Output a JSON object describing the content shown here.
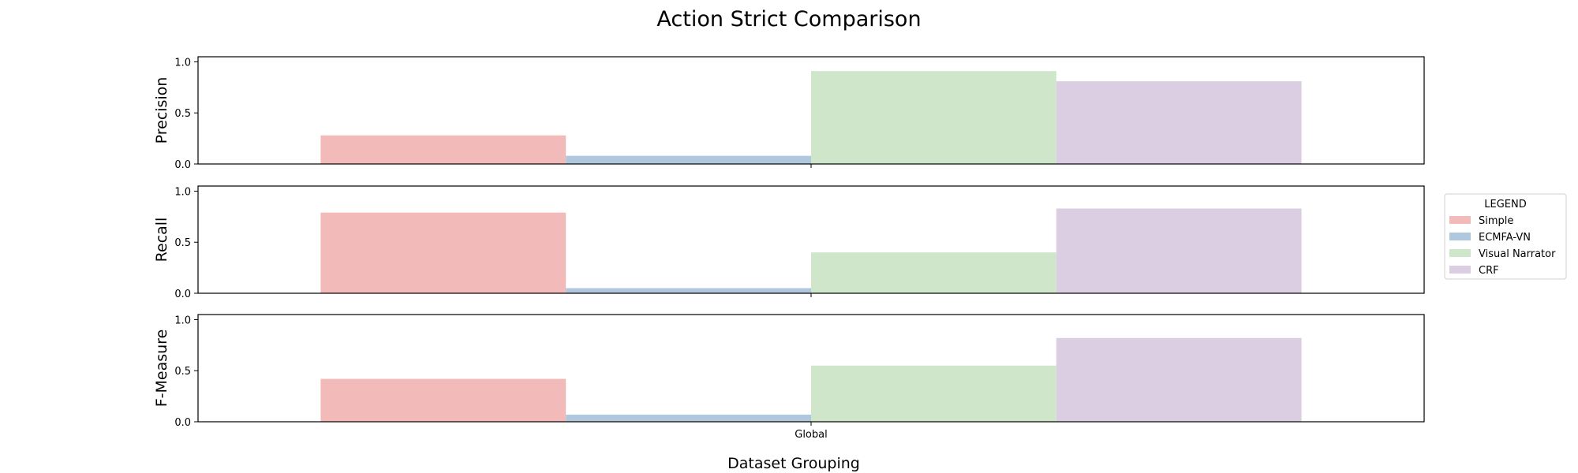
{
  "chart_data": {
    "type": "bar",
    "title": "Action Strict Comparison",
    "xlabel": "Dataset Grouping",
    "categories": [
      "Global"
    ],
    "legend": {
      "title": "LEGEND",
      "placement": "right",
      "entries": [
        "Simple",
        "ECMFA-VN",
        "Visual Narrator",
        "CRF"
      ]
    },
    "colors": {
      "Simple": "#f2bab8",
      "ECMFA-VN": "#b0c8de",
      "Visual Narrator": "#cfe6cb",
      "CRF": "#dccee2"
    },
    "ylim": [
      0,
      1.05
    ],
    "yticks": [
      "0.0",
      "0.5",
      "1.0"
    ],
    "grid": false,
    "panels": [
      {
        "ylabel": "Precision",
        "series": [
          {
            "name": "Simple",
            "values": [
              0.28
            ]
          },
          {
            "name": "ECMFA-VN",
            "values": [
              0.08
            ]
          },
          {
            "name": "Visual Narrator",
            "values": [
              0.91
            ]
          },
          {
            "name": "CRF",
            "values": [
              0.81
            ]
          }
        ]
      },
      {
        "ylabel": "Recall",
        "series": [
          {
            "name": "Simple",
            "values": [
              0.79
            ]
          },
          {
            "name": "ECMFA-VN",
            "values": [
              0.05
            ]
          },
          {
            "name": "Visual Narrator",
            "values": [
              0.4
            ]
          },
          {
            "name": "CRF",
            "values": [
              0.83
            ]
          }
        ]
      },
      {
        "ylabel": "F-Measure",
        "series": [
          {
            "name": "Simple",
            "values": [
              0.42
            ]
          },
          {
            "name": "ECMFA-VN",
            "values": [
              0.07
            ]
          },
          {
            "name": "Visual Narrator",
            "values": [
              0.55
            ]
          },
          {
            "name": "CRF",
            "values": [
              0.82
            ]
          }
        ]
      }
    ]
  }
}
